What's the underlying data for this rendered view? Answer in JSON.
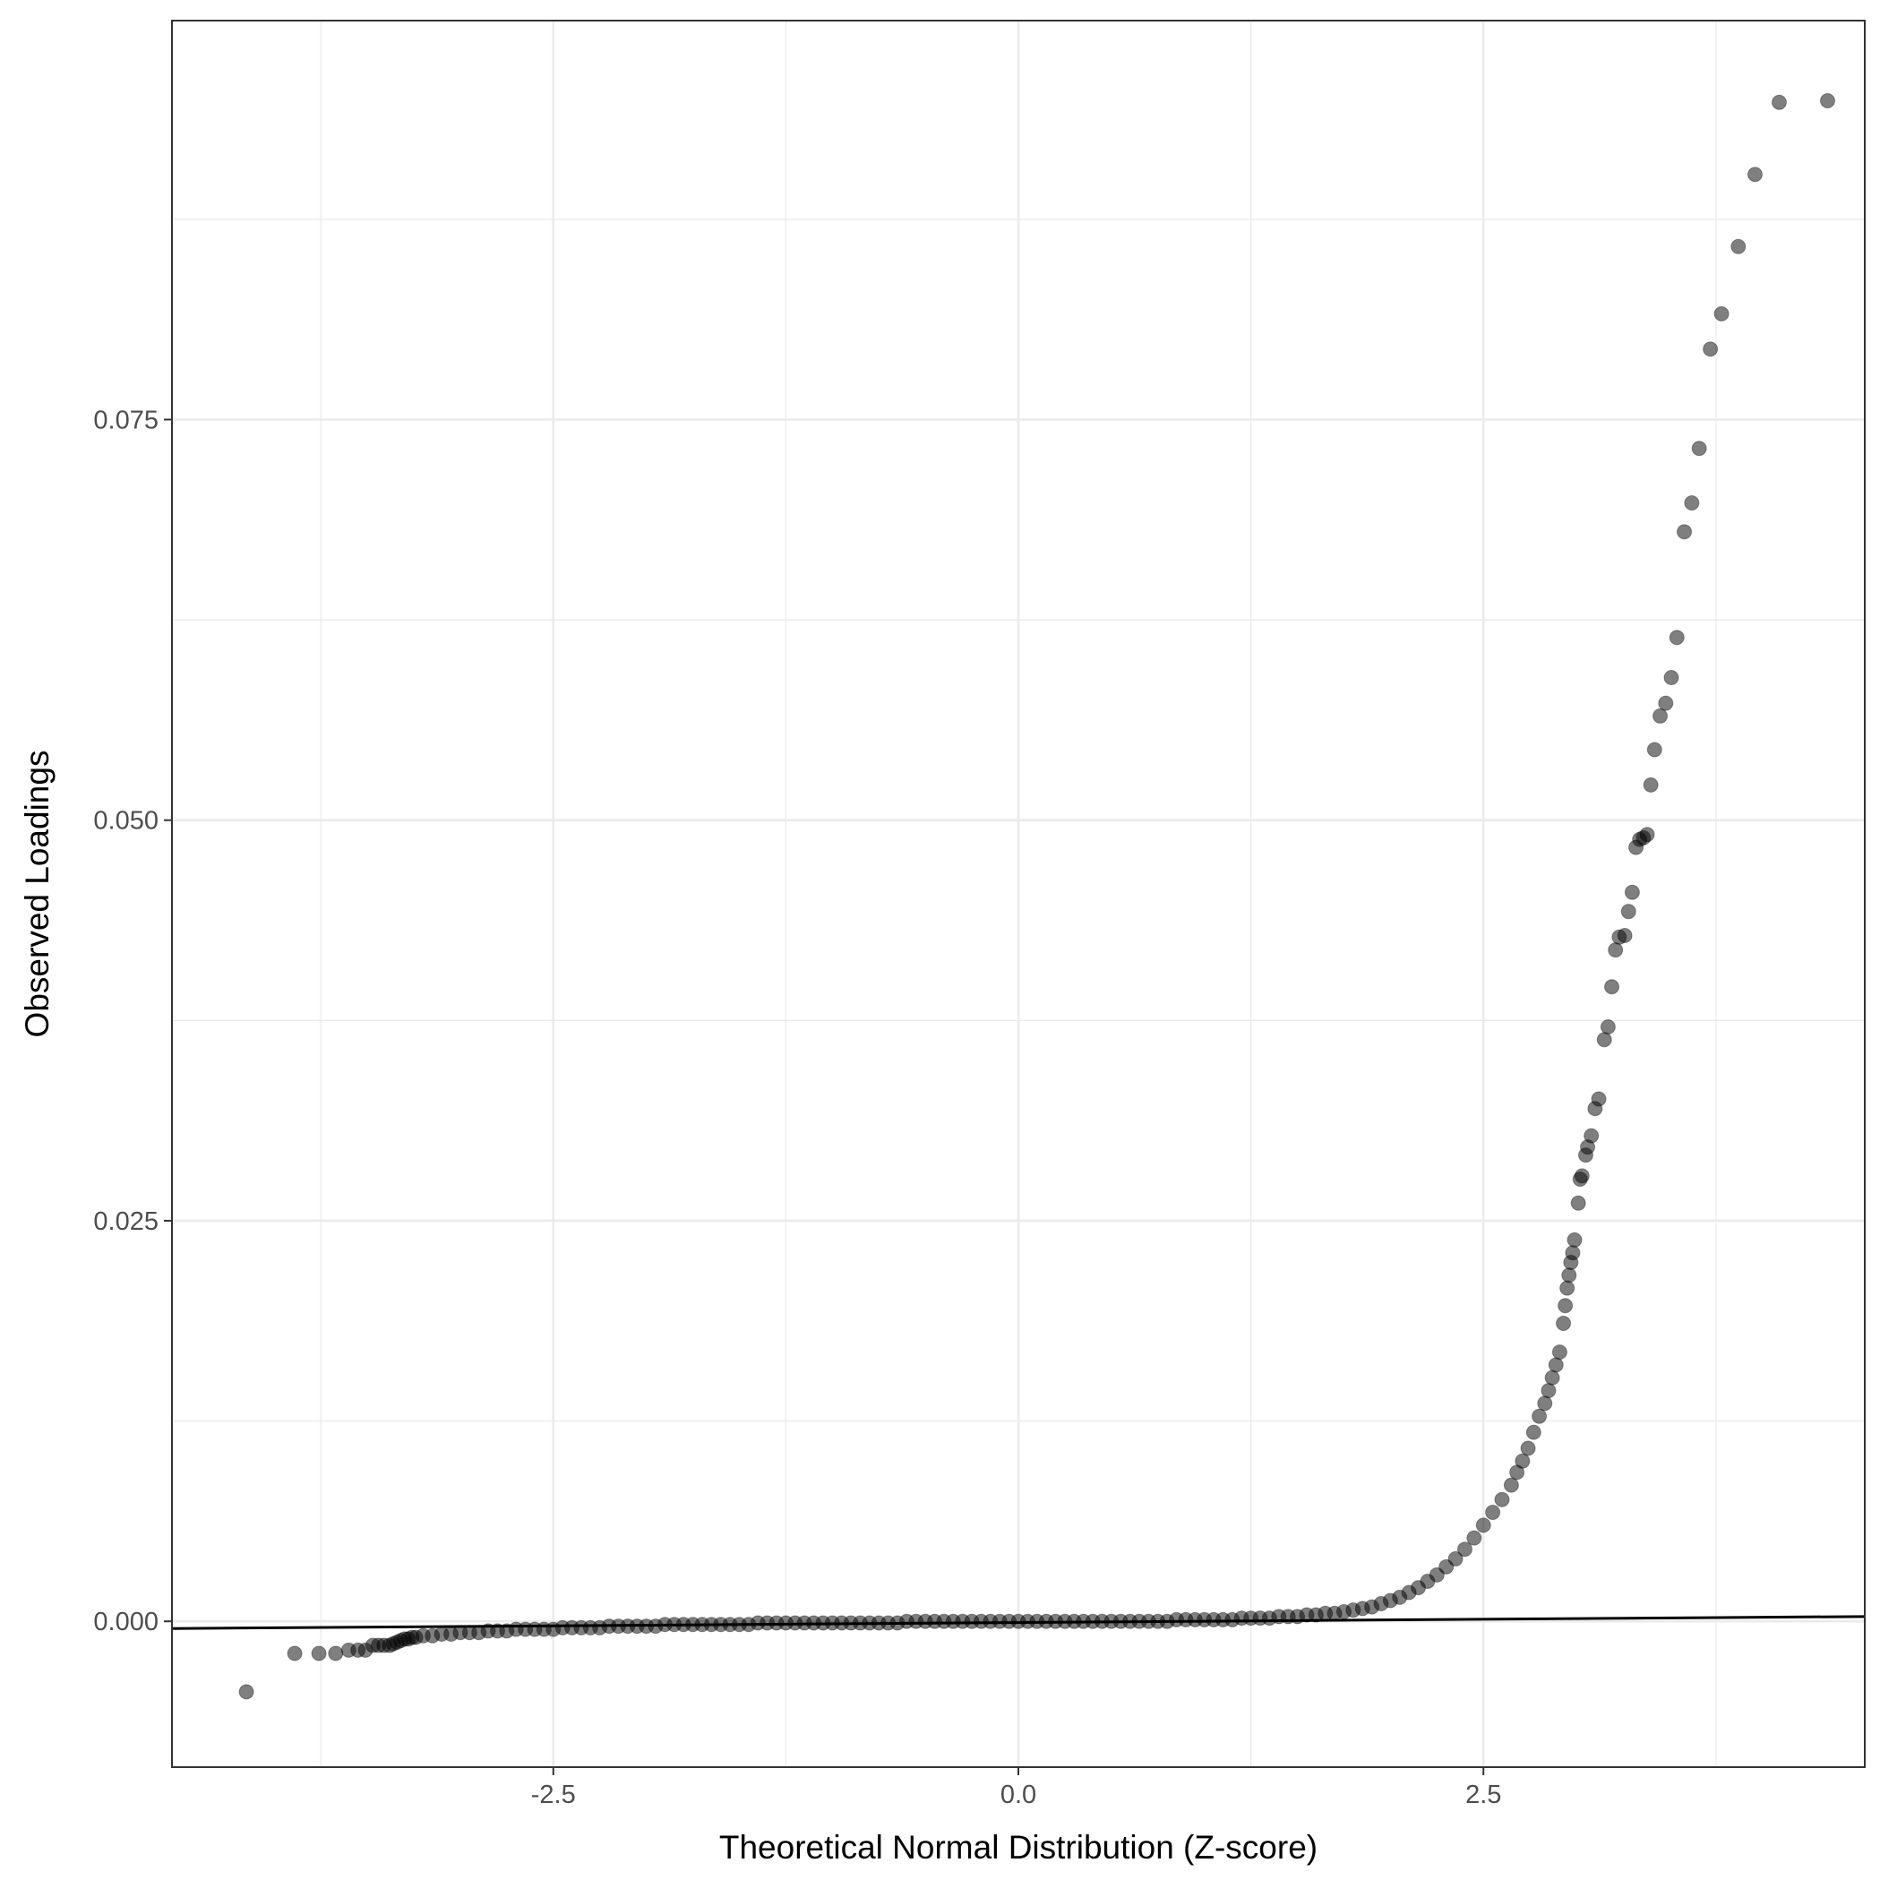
{
  "chart_data": {
    "type": "scatter",
    "title": "",
    "xlabel": "Theoretical Normal Distribution (Z-score)",
    "ylabel": "Observed Loadings",
    "xlim": [
      -4.55,
      4.55
    ],
    "ylim": [
      -0.0091,
      0.0999
    ],
    "x_ticks": [
      {
        "value": -2.5,
        "label": "-2.5"
      },
      {
        "value": 0.0,
        "label": "0.0"
      },
      {
        "value": 2.5,
        "label": "2.5"
      }
    ],
    "y_ticks": [
      {
        "value": 0.0,
        "label": "0.000"
      },
      {
        "value": 0.025,
        "label": "0.025"
      },
      {
        "value": 0.05,
        "label": "0.050"
      },
      {
        "value": 0.075,
        "label": "0.075"
      }
    ],
    "x_minor_grid": [
      -3.75,
      -1.25,
      1.25,
      3.75
    ],
    "y_minor_grid": [
      0.0125,
      0.0375,
      0.0625,
      0.0875
    ],
    "grid": true,
    "reference_line": {
      "x": [
        -4.55,
        4.55
      ],
      "y": [
        -0.00045,
        0.0003
      ],
      "color": "#000000"
    },
    "point_color": "#000000",
    "point_opacity": 0.5,
    "points": [
      [
        -4.15,
        -0.0044
      ],
      [
        -3.89,
        -0.002
      ],
      [
        -3.76,
        -0.002
      ],
      [
        -3.67,
        -0.002
      ],
      [
        -3.6,
        -0.0018
      ],
      [
        -3.55,
        -0.0018
      ],
      [
        -3.51,
        -0.0018
      ],
      [
        -3.47,
        -0.0015
      ],
      [
        -3.44,
        -0.0015
      ],
      [
        -3.41,
        -0.0015
      ],
      [
        -3.38,
        -0.0015
      ],
      [
        -3.36,
        -0.0014
      ],
      [
        -3.34,
        -0.0013
      ],
      [
        -3.32,
        -0.0012
      ],
      [
        -3.3,
        -0.0011
      ],
      [
        -3.28,
        -0.0011
      ],
      [
        -3.26,
        -0.001
      ],
      [
        -3.24,
        -0.001
      ],
      [
        -3.2,
        -0.0009
      ],
      [
        -3.15,
        -0.0009
      ],
      [
        -3.1,
        -0.0008
      ],
      [
        -3.05,
        -0.0008
      ],
      [
        -3.0,
        -0.0007
      ],
      [
        -2.95,
        -0.0007
      ],
      [
        -2.9,
        -0.0007
      ],
      [
        -2.85,
        -0.0006
      ],
      [
        -2.8,
        -0.0006
      ],
      [
        -2.75,
        -0.0006
      ],
      [
        -2.7,
        -0.0005
      ],
      [
        -2.65,
        -0.0005
      ],
      [
        -2.6,
        -0.0005
      ],
      [
        -2.55,
        -0.0005
      ],
      [
        -2.5,
        -0.0005
      ],
      [
        -2.45,
        -0.0004
      ],
      [
        -2.4,
        -0.0004
      ],
      [
        -2.35,
        -0.0004
      ],
      [
        -2.3,
        -0.0004
      ],
      [
        -2.25,
        -0.0004
      ],
      [
        -2.2,
        -0.0003
      ],
      [
        -2.15,
        -0.0003
      ],
      [
        -2.1,
        -0.0003
      ],
      [
        -2.05,
        -0.0003
      ],
      [
        -2.0,
        -0.0003
      ],
      [
        -1.95,
        -0.0003
      ],
      [
        -1.9,
        -0.0002
      ],
      [
        -1.85,
        -0.0002
      ],
      [
        -1.8,
        -0.0002
      ],
      [
        -1.75,
        -0.0002
      ],
      [
        -1.7,
        -0.0002
      ],
      [
        -1.65,
        -0.0002
      ],
      [
        -1.6,
        -0.0002
      ],
      [
        -1.55,
        -0.0002
      ],
      [
        -1.5,
        -0.0002
      ],
      [
        -1.45,
        -0.0002
      ],
      [
        -1.4,
        -0.0001
      ],
      [
        -1.35,
        -0.0001
      ],
      [
        -1.3,
        -0.0001
      ],
      [
        -1.25,
        -0.0001
      ],
      [
        -1.2,
        -0.0001
      ],
      [
        -1.15,
        -0.0001
      ],
      [
        -1.1,
        -0.0001
      ],
      [
        -1.05,
        -0.0001
      ],
      [
        -1.0,
        -0.0001
      ],
      [
        -0.95,
        -0.0001
      ],
      [
        -0.9,
        -0.0001
      ],
      [
        -0.85,
        -0.0001
      ],
      [
        -0.8,
        -0.0001
      ],
      [
        -0.75,
        -0.0001
      ],
      [
        -0.7,
        -0.0001
      ],
      [
        -0.65,
        -0.0001
      ],
      [
        -0.6,
        0.0
      ],
      [
        -0.55,
        0.0
      ],
      [
        -0.5,
        0.0
      ],
      [
        -0.45,
        0.0
      ],
      [
        -0.4,
        0.0
      ],
      [
        -0.35,
        0.0
      ],
      [
        -0.3,
        0.0
      ],
      [
        -0.25,
        0.0
      ],
      [
        -0.2,
        0.0
      ],
      [
        -0.15,
        0.0
      ],
      [
        -0.1,
        0.0
      ],
      [
        -0.05,
        0.0
      ],
      [
        0.0,
        0.0
      ],
      [
        0.05,
        0.0
      ],
      [
        0.1,
        0.0
      ],
      [
        0.15,
        0.0
      ],
      [
        0.2,
        0.0
      ],
      [
        0.25,
        0.0
      ],
      [
        0.3,
        0.0
      ],
      [
        0.35,
        0.0
      ],
      [
        0.4,
        0.0
      ],
      [
        0.45,
        0.0
      ],
      [
        0.5,
        0.0
      ],
      [
        0.55,
        0.0
      ],
      [
        0.6,
        0.0
      ],
      [
        0.65,
        0.0
      ],
      [
        0.7,
        0.0
      ],
      [
        0.75,
        0.0
      ],
      [
        0.8,
        0.0
      ],
      [
        0.85,
        0.0001
      ],
      [
        0.9,
        0.0001
      ],
      [
        0.95,
        0.0001
      ],
      [
        1.0,
        0.0001
      ],
      [
        1.05,
        0.0001
      ],
      [
        1.1,
        0.0001
      ],
      [
        1.15,
        0.0001
      ],
      [
        1.2,
        0.0002
      ],
      [
        1.25,
        0.0002
      ],
      [
        1.3,
        0.0002
      ],
      [
        1.35,
        0.0002
      ],
      [
        1.4,
        0.0003
      ],
      [
        1.45,
        0.0003
      ],
      [
        1.5,
        0.0003
      ],
      [
        1.55,
        0.0004
      ],
      [
        1.6,
        0.0004
      ],
      [
        1.65,
        0.0005
      ],
      [
        1.7,
        0.0005
      ],
      [
        1.75,
        0.0006
      ],
      [
        1.8,
        0.0007
      ],
      [
        1.85,
        0.0008
      ],
      [
        1.9,
        0.0009
      ],
      [
        1.95,
        0.0011
      ],
      [
        2.0,
        0.0013
      ],
      [
        2.05,
        0.0015
      ],
      [
        2.1,
        0.0018
      ],
      [
        2.15,
        0.0021
      ],
      [
        2.2,
        0.0025
      ],
      [
        2.25,
        0.0029
      ],
      [
        2.3,
        0.0034
      ],
      [
        2.35,
        0.0039
      ],
      [
        2.4,
        0.0045
      ],
      [
        2.45,
        0.0052
      ],
      [
        2.5,
        0.006
      ],
      [
        2.55,
        0.0068
      ],
      [
        2.6,
        0.0076
      ],
      [
        2.65,
        0.0085
      ],
      [
        2.68,
        0.0093
      ],
      [
        2.71,
        0.01
      ],
      [
        2.74,
        0.0108
      ],
      [
        2.77,
        0.0118
      ],
      [
        2.8,
        0.0128
      ],
      [
        2.83,
        0.0136
      ],
      [
        2.85,
        0.0144
      ],
      [
        2.87,
        0.0152
      ],
      [
        2.89,
        0.016
      ],
      [
        2.91,
        0.0168
      ],
      [
        2.93,
        0.0186
      ],
      [
        2.94,
        0.0197
      ],
      [
        2.95,
        0.0208
      ],
      [
        2.96,
        0.0216
      ],
      [
        2.97,
        0.0224
      ],
      [
        2.98,
        0.023
      ],
      [
        2.99,
        0.0238
      ],
      [
        3.01,
        0.0261
      ],
      [
        3.02,
        0.0276
      ],
      [
        3.03,
        0.0278
      ],
      [
        3.05,
        0.0291
      ],
      [
        3.06,
        0.0296
      ],
      [
        3.08,
        0.0303
      ],
      [
        3.1,
        0.032
      ],
      [
        3.12,
        0.0326
      ],
      [
        3.15,
        0.0363
      ],
      [
        3.17,
        0.0371
      ],
      [
        3.19,
        0.0396
      ],
      [
        3.21,
        0.0419
      ],
      [
        3.23,
        0.0427
      ],
      [
        3.26,
        0.0428
      ],
      [
        3.28,
        0.0443
      ],
      [
        3.3,
        0.0455
      ],
      [
        3.32,
        0.0483
      ],
      [
        3.34,
        0.0488
      ],
      [
        3.36,
        0.0489
      ],
      [
        3.38,
        0.0491
      ],
      [
        3.4,
        0.0522
      ],
      [
        3.42,
        0.0544
      ],
      [
        3.45,
        0.0565
      ],
      [
        3.48,
        0.0573
      ],
      [
        3.51,
        0.0589
      ],
      [
        3.54,
        0.0614
      ],
      [
        3.58,
        0.068
      ],
      [
        3.62,
        0.0698
      ],
      [
        3.66,
        0.0732
      ],
      [
        3.72,
        0.0794
      ],
      [
        3.78,
        0.0816
      ],
      [
        3.87,
        0.0858
      ],
      [
        3.96,
        0.0903
      ],
      [
        4.09,
        0.0948
      ],
      [
        4.35,
        0.0949
      ]
    ]
  }
}
